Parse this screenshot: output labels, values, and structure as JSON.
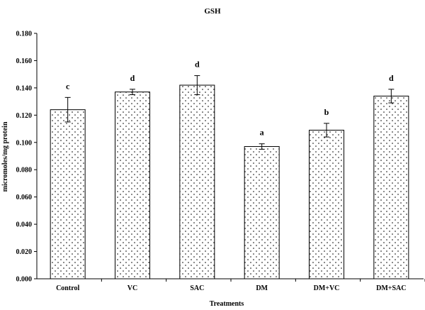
{
  "chart_data": {
    "type": "bar",
    "title": "GSH",
    "xlabel": "Treatments",
    "ylabel": "micromoles/mg protein",
    "categories": [
      "Control",
      "VC",
      "SAC",
      "DM",
      "DM+VC",
      "DM+SAC"
    ],
    "values": [
      0.124,
      0.137,
      0.142,
      0.097,
      0.109,
      0.134
    ],
    "errors": [
      0.009,
      0.002,
      0.007,
      0.002,
      0.005,
      0.005
    ],
    "significance_labels": [
      "c",
      "d",
      "d",
      "a",
      "b",
      "d"
    ],
    "ylim": [
      0,
      0.18
    ],
    "yticks": [
      "0.000",
      "0.020",
      "0.040",
      "0.060",
      "0.080",
      "0.100",
      "0.120",
      "0.140",
      "0.160",
      "0.180"
    ],
    "grid": false,
    "legend": "none"
  }
}
